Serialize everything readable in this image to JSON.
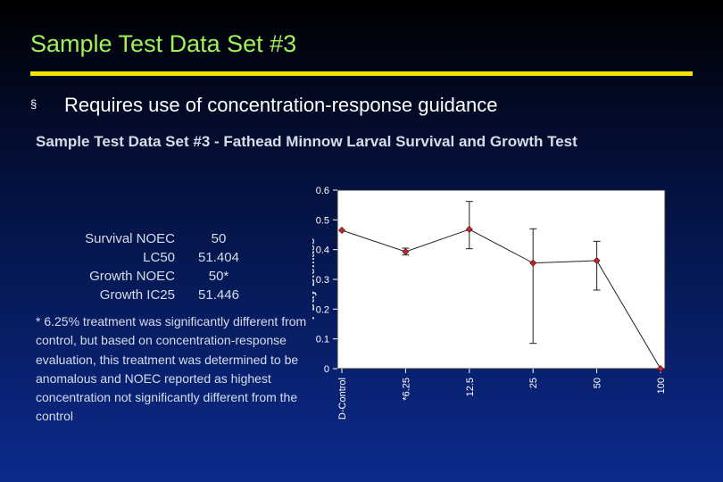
{
  "slide": {
    "title": "Sample Test Data Set #3",
    "bullet_symbol": "§",
    "bullet": "Requires use of concentration-response guidance",
    "chart_heading": "Sample Test Data Set #3 - Fathead Minnow Larval Survival and Growth Test"
  },
  "stats": [
    {
      "label": "Survival NOEC",
      "value": "50"
    },
    {
      "label": "LC50",
      "value": "51.404"
    },
    {
      "label": "Growth NOEC",
      "value": "50*"
    },
    {
      "label": "Growth IC25",
      "value": "51.446"
    }
  ],
  "footnote": "* 6.25% treatment was significantly different from control, but based on concentration-response evaluation, this treatment was determined to be anomalous and NOEC reported as highest concentration not significantly different from the control",
  "colors": {
    "title": "#9ef25a",
    "rule": "#f5e400",
    "marker": "#c0262c",
    "plot_background": "#ffffff"
  },
  "chart_data": {
    "type": "line",
    "title": "",
    "xlabel": "",
    "ylabel": "7 Day Biomass",
    "categories": [
      "D-Control",
      "*6.25",
      "12.5",
      "25",
      "50",
      "100"
    ],
    "values": [
      0.465,
      0.393,
      0.468,
      0.355,
      0.363,
      0.0
    ],
    "error_low": [
      null,
      0.382,
      0.403,
      0.085,
      0.264,
      null
    ],
    "error_high": [
      null,
      0.405,
      0.562,
      0.47,
      0.428,
      null
    ],
    "ylim": [
      0,
      0.6
    ],
    "yticks": [
      "0",
      "0.1",
      "0.2",
      "0.3",
      "0.4",
      "0.5",
      "0.6"
    ],
    "grid": false
  }
}
